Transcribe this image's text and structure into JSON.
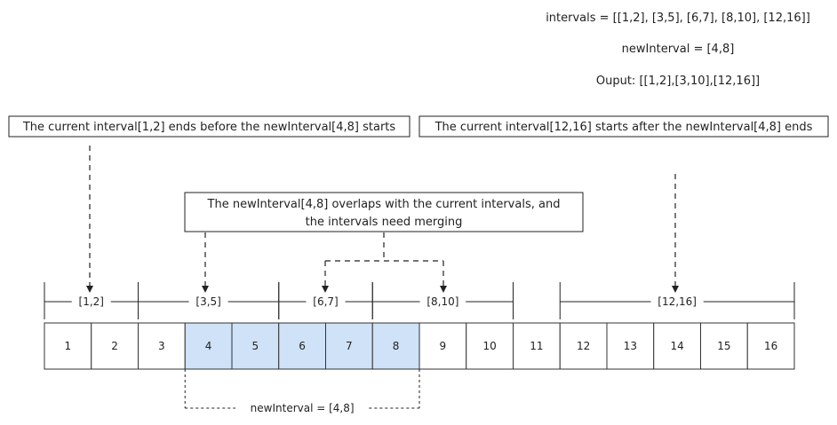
{
  "info": {
    "intervals_line": "intervals = [[1,2], [3,5], [6,7], [8,10], [12,16]]",
    "new_interval_line": "newInterval = [4,8]",
    "output_line": "Ouput: [[1,2],[3,10],[12,16]]"
  },
  "notes": {
    "before": "The current interval[1,2] ends before the newInterval[4,8] starts",
    "after": "The current interval[12,16] starts after the newInterval[4,8] ends",
    "overlap_line1": "The newInterval[4,8] overlaps with the current intervals, and",
    "overlap_line2": "the intervals need merging"
  },
  "cells": [
    1,
    2,
    3,
    4,
    5,
    6,
    7,
    8,
    9,
    10,
    11,
    12,
    13,
    14,
    15,
    16
  ],
  "highlight": {
    "start": 4,
    "end": 8,
    "color": "#cfe2f7"
  },
  "ranges": [
    {
      "label": "[1,2]",
      "start": 1,
      "end": 2
    },
    {
      "label": "[3,5]",
      "start": 3,
      "end": 5
    },
    {
      "label": "[6,7]",
      "start": 6,
      "end": 7
    },
    {
      "label": "[8,10]",
      "start": 8,
      "end": 10
    },
    {
      "label": "[12,16]",
      "start": 12,
      "end": 16
    }
  ],
  "new_interval_label": "newInterval = [4,8]",
  "colors": {
    "line": "#222222",
    "cell_border": "#333333",
    "highlight": "#cfe2f7"
  }
}
